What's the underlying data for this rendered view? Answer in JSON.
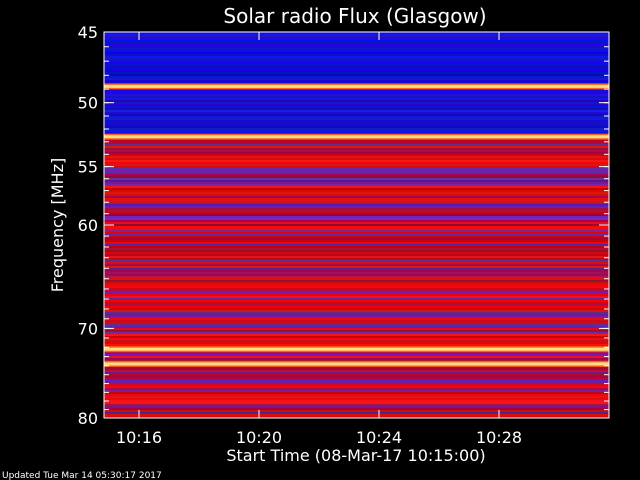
{
  "chart_data": {
    "type": "heatmap",
    "title": "Solar radio Flux (Glasgow)",
    "xlabel": "Start Time (08-Mar-17 10:15:00)",
    "ylabel": "Frequency [MHz]",
    "ylim": [
      45,
      80
    ],
    "y_scale": "log",
    "y_ticks": [
      45,
      50,
      55,
      60,
      70,
      80
    ],
    "y_tick_labels": [
      "45",
      "50",
      "55",
      "60",
      "70",
      "80"
    ],
    "x_ticks": [
      "10:16",
      "10:20",
      "10:24",
      "10:28"
    ],
    "colors": {
      "background": "#000000",
      "low": "#1a1adc",
      "mid": "#7a2aa8",
      "high": "#d81010",
      "peak": "#ffe080"
    },
    "features": [
      {
        "label": "strong band",
        "freq_mhz": 48.8
      },
      {
        "label": "strong band",
        "freq_mhz": 52.6
      },
      {
        "label": "strong band",
        "freq_mhz": 72.2
      },
      {
        "label": "strong band",
        "freq_mhz": 73.8
      }
    ]
  },
  "footer": {
    "updated": "Updated Tue Mar 14 05:30:17 2017"
  }
}
